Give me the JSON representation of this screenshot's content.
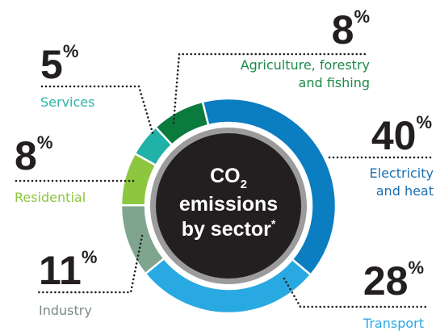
{
  "chart_data": {
    "type": "donut",
    "title": {
      "chem": "CO",
      "sub": "2",
      "line2": "emissions",
      "line3": "by sector",
      "mark": "*"
    },
    "categories": [
      "Electricity and heat",
      "Transport",
      "Industry",
      "Residential",
      "Services",
      "Agriculture, forestry and fishing"
    ],
    "values": [
      40,
      28,
      11,
      8,
      5,
      8
    ],
    "value_labels": [
      "40%",
      "28%",
      "11%",
      "8%",
      "5%",
      "8%"
    ],
    "colors": [
      "#0b7dc1",
      "#29a9e1",
      "#7fa58e",
      "#8dc63f",
      "#20b1a7",
      "#0a7a3d"
    ],
    "label_colors": [
      "#1b6fb0",
      "#29a9e1",
      "#7d8a88",
      "#8dc63f",
      "#2ab3a8",
      "#1a8a4a"
    ]
  }
}
